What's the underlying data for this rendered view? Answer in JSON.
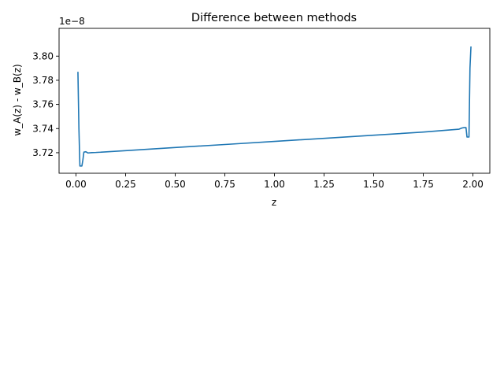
{
  "chart_data": {
    "type": "line",
    "title": "Difference between methods",
    "xlabel": "z",
    "ylabel": "w_A(z) - w_B(z)",
    "scale_label": "1e−8",
    "xlim": [
      -0.085,
      2.085
    ],
    "ylim": [
      3.703,
      3.823
    ],
    "x_ticks": [
      0.0,
      0.25,
      0.5,
      0.75,
      1.0,
      1.25,
      1.5,
      1.75,
      2.0
    ],
    "x_tick_labels": [
      "0.00",
      "0.25",
      "0.50",
      "0.75",
      "1.00",
      "1.25",
      "1.50",
      "1.75",
      "2.00"
    ],
    "y_ticks": [
      3.72,
      3.74,
      3.76,
      3.78,
      3.8
    ],
    "y_tick_labels": [
      "3.72",
      "3.74",
      "3.76",
      "3.78",
      "3.80"
    ],
    "grid": false,
    "series": [
      {
        "color": "#1f77b4",
        "x": [
          0.01,
          0.015,
          0.02,
          0.03,
          0.035,
          0.04,
          0.05,
          0.06,
          0.08,
          0.1,
          0.25,
          0.5,
          0.75,
          1.0,
          1.25,
          1.5,
          1.75,
          1.93,
          1.945,
          1.955,
          1.965,
          1.97,
          1.975,
          1.98,
          1.985,
          1.99
        ],
        "y": [
          3.787,
          3.74,
          3.709,
          3.709,
          3.714,
          3.7205,
          3.7208,
          3.7198,
          3.7201,
          3.7202,
          3.7217,
          3.7243,
          3.7268,
          3.7294,
          3.7319,
          3.7345,
          3.7371,
          3.7395,
          3.7405,
          3.7408,
          3.7408,
          3.733,
          3.733,
          3.733,
          3.79,
          3.808
        ]
      }
    ]
  }
}
